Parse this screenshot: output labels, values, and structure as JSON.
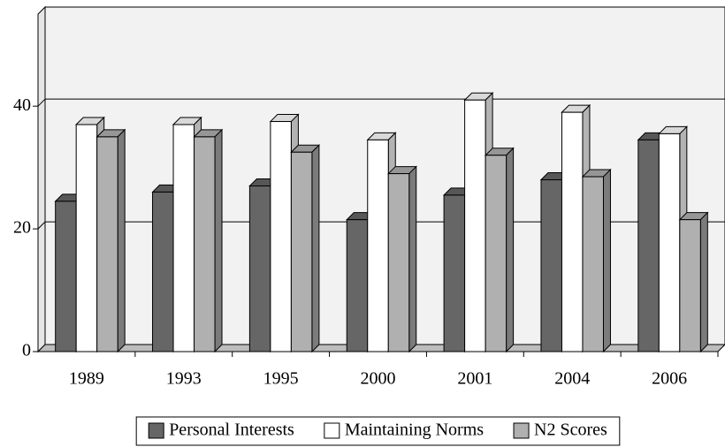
{
  "chart_data": {
    "type": "bar3d",
    "categories": [
      "1989",
      "1993",
      "1995",
      "2000",
      "2001",
      "2004",
      "2006"
    ],
    "series": [
      {
        "name": "Personal Interests",
        "color": "#666666",
        "values": [
          24.5,
          26,
          27,
          21.5,
          25.5,
          28,
          34.5
        ]
      },
      {
        "name": "Maintaining Norms",
        "color": "#ffffff",
        "values": [
          37,
          37,
          37.5,
          34.5,
          41,
          39,
          35.5
        ]
      },
      {
        "name": "N2 Scores",
        "color": "#b0b0b0",
        "values": [
          35,
          35,
          32.5,
          29,
          32,
          28.5,
          21.5
        ]
      }
    ],
    "ylim": [
      0,
      55
    ],
    "yticks": [
      0,
      20,
      40
    ],
    "grid": true,
    "legend": "bottom"
  }
}
